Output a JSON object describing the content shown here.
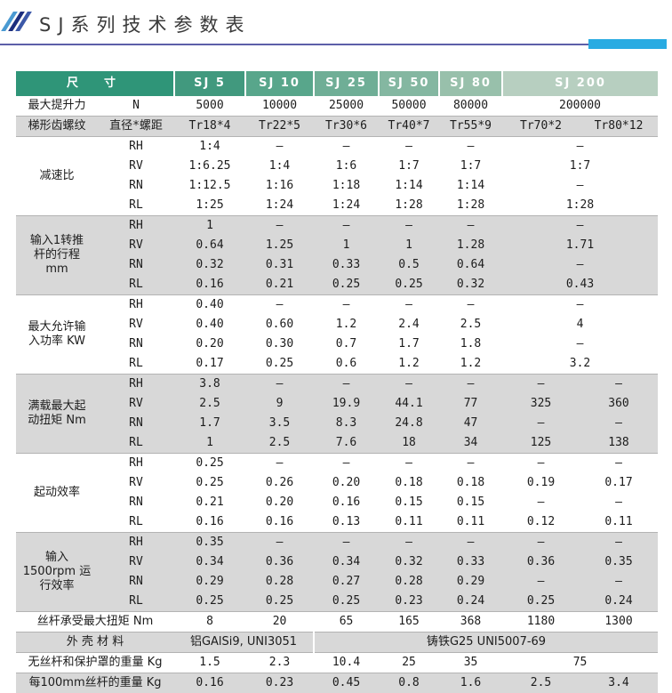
{
  "page": {
    "title": "SJ系列技术参数表",
    "accent": {
      "underline": "#5c5fa8",
      "corner_tab": "#29abe2",
      "slash_light": "#4a9ad2",
      "slash_navy": "#1c2e7e",
      "slash_mid": "#3c58a8",
      "header_green_dark": "#2f9578",
      "header_green_light": "#b7cfc0",
      "row_gray": "#d8d8d8"
    }
  },
  "table": {
    "rows": [
      {
        "bg": "h",
        "cells": [
          {
            "t": "尺　寸",
            "cs": 2,
            "k": "head"
          },
          {
            "t": "SJ 5",
            "k": "head"
          },
          {
            "t": "SJ 10",
            "k": "head"
          },
          {
            "t": "SJ 25",
            "k": "head"
          },
          {
            "t": "SJ 50",
            "k": "head"
          },
          {
            "t": "SJ 80",
            "k": "head"
          },
          {
            "t": "SJ 200",
            "cs": 2,
            "k": "head"
          }
        ]
      },
      {
        "bg": "w",
        "cells": [
          {
            "t": "最大提升力",
            "k": "label",
            "al": "l"
          },
          {
            "t": "N",
            "k": "sub"
          },
          {
            "t": "5000"
          },
          {
            "t": "10000"
          },
          {
            "t": "25000"
          },
          {
            "t": "50000"
          },
          {
            "t": "80000"
          },
          {
            "t": "200000",
            "cs": 2
          }
        ]
      },
      {
        "bg": "g",
        "ln": true,
        "cells": [
          {
            "t": "梯形齿螺纹",
            "k": "label",
            "al": "l"
          },
          {
            "t": "直径*螺距",
            "k": "sub"
          },
          {
            "t": "Tr18*4"
          },
          {
            "t": "Tr22*5"
          },
          {
            "t": "Tr30*6"
          },
          {
            "t": "Tr40*7"
          },
          {
            "t": "Tr55*9"
          },
          {
            "t": "Tr70*2"
          },
          {
            "t": "Tr80*12"
          }
        ]
      },
      {
        "bg": "w",
        "ln": true,
        "cells": [
          {
            "t": "减速比",
            "k": "label",
            "rs": 4
          },
          {
            "t": "RH",
            "k": "sub"
          },
          {
            "t": "1:4"
          },
          {
            "t": "–"
          },
          {
            "t": "–"
          },
          {
            "t": "–"
          },
          {
            "t": "–"
          },
          {
            "t": "–",
            "cs": 2
          }
        ]
      },
      {
        "bg": "w",
        "cells": [
          {
            "t": "RV",
            "k": "sub"
          },
          {
            "t": "1:6.25"
          },
          {
            "t": "1:4"
          },
          {
            "t": "1:6"
          },
          {
            "t": "1:7"
          },
          {
            "t": "1:7"
          },
          {
            "t": "1:7",
            "cs": 2
          }
        ]
      },
      {
        "bg": "w",
        "cells": [
          {
            "t": "RN",
            "k": "sub"
          },
          {
            "t": "1:12.5"
          },
          {
            "t": "1:16"
          },
          {
            "t": "1:18"
          },
          {
            "t": "1:14"
          },
          {
            "t": "1:14"
          },
          {
            "t": "–",
            "cs": 2
          }
        ]
      },
      {
        "bg": "w",
        "cells": [
          {
            "t": "RL",
            "k": "sub"
          },
          {
            "t": "1:25"
          },
          {
            "t": "1:24"
          },
          {
            "t": "1:24"
          },
          {
            "t": "1:28"
          },
          {
            "t": "1:28"
          },
          {
            "t": "1:28",
            "cs": 2
          }
        ]
      },
      {
        "bg": "g",
        "ln": true,
        "cells": [
          {
            "t": "输入1转推\n杆的行程\nmm",
            "k": "label",
            "rs": 4
          },
          {
            "t": "RH",
            "k": "sub"
          },
          {
            "t": "1"
          },
          {
            "t": "–"
          },
          {
            "t": "–"
          },
          {
            "t": "–"
          },
          {
            "t": "–"
          },
          {
            "t": "–",
            "cs": 2
          }
        ]
      },
      {
        "bg": "g",
        "cells": [
          {
            "t": "RV",
            "k": "sub"
          },
          {
            "t": "0.64"
          },
          {
            "t": "1.25"
          },
          {
            "t": "1"
          },
          {
            "t": "1"
          },
          {
            "t": "1.28"
          },
          {
            "t": "1.71",
            "cs": 2
          }
        ]
      },
      {
        "bg": "g",
        "cells": [
          {
            "t": "RN",
            "k": "sub"
          },
          {
            "t": "0.32"
          },
          {
            "t": "0.31"
          },
          {
            "t": "0.33"
          },
          {
            "t": "0.5"
          },
          {
            "t": "0.64"
          },
          {
            "t": "–",
            "cs": 2
          }
        ]
      },
      {
        "bg": "g",
        "cells": [
          {
            "t": "RL",
            "k": "sub"
          },
          {
            "t": "0.16"
          },
          {
            "t": "0.21"
          },
          {
            "t": "0.25"
          },
          {
            "t": "0.25"
          },
          {
            "t": "0.32"
          },
          {
            "t": "0.43",
            "cs": 2
          }
        ]
      },
      {
        "bg": "w",
        "ln": true,
        "cells": [
          {
            "t": "最大允许输\n入功率 KW",
            "k": "label",
            "rs": 4
          },
          {
            "t": "RH",
            "k": "sub"
          },
          {
            "t": "0.40"
          },
          {
            "t": "–"
          },
          {
            "t": "–"
          },
          {
            "t": "–"
          },
          {
            "t": "–"
          },
          {
            "t": "–",
            "cs": 2
          }
        ]
      },
      {
        "bg": "w",
        "cells": [
          {
            "t": "RV",
            "k": "sub"
          },
          {
            "t": "0.40"
          },
          {
            "t": "0.60"
          },
          {
            "t": "1.2"
          },
          {
            "t": "2.4"
          },
          {
            "t": "2.5"
          },
          {
            "t": "4",
            "cs": 2
          }
        ]
      },
      {
        "bg": "w",
        "cells": [
          {
            "t": "RN",
            "k": "sub"
          },
          {
            "t": "0.20"
          },
          {
            "t": "0.30"
          },
          {
            "t": "0.7"
          },
          {
            "t": "1.7"
          },
          {
            "t": "1.8"
          },
          {
            "t": "–",
            "cs": 2
          }
        ]
      },
      {
        "bg": "w",
        "cells": [
          {
            "t": "RL",
            "k": "sub"
          },
          {
            "t": "0.17"
          },
          {
            "t": "0.25"
          },
          {
            "t": "0.6"
          },
          {
            "t": "1.2"
          },
          {
            "t": "1.2"
          },
          {
            "t": "3.2",
            "cs": 2
          }
        ]
      },
      {
        "bg": "g",
        "ln": true,
        "cells": [
          {
            "t": "满载最大起\n动扭矩 Nm",
            "k": "label",
            "rs": 4
          },
          {
            "t": "RH",
            "k": "sub"
          },
          {
            "t": "3.8"
          },
          {
            "t": "–"
          },
          {
            "t": "–"
          },
          {
            "t": "–"
          },
          {
            "t": "–"
          },
          {
            "t": "–"
          },
          {
            "t": "–"
          }
        ]
      },
      {
        "bg": "g",
        "cells": [
          {
            "t": "RV",
            "k": "sub"
          },
          {
            "t": "2.5"
          },
          {
            "t": "9"
          },
          {
            "t": "19.9"
          },
          {
            "t": "44.1"
          },
          {
            "t": "77"
          },
          {
            "t": "325"
          },
          {
            "t": "360"
          }
        ]
      },
      {
        "bg": "g",
        "cells": [
          {
            "t": "RN",
            "k": "sub"
          },
          {
            "t": "1.7"
          },
          {
            "t": "3.5"
          },
          {
            "t": "8.3"
          },
          {
            "t": "24.8"
          },
          {
            "t": "47"
          },
          {
            "t": "–"
          },
          {
            "t": "–"
          }
        ]
      },
      {
        "bg": "g",
        "cells": [
          {
            "t": "RL",
            "k": "sub"
          },
          {
            "t": "1"
          },
          {
            "t": "2.5"
          },
          {
            "t": "7.6"
          },
          {
            "t": "18"
          },
          {
            "t": "34"
          },
          {
            "t": "125"
          },
          {
            "t": "138"
          }
        ]
      },
      {
        "bg": "w",
        "ln": true,
        "cells": [
          {
            "t": "起动效率",
            "k": "label",
            "rs": 4
          },
          {
            "t": "RH",
            "k": "sub"
          },
          {
            "t": "0.25"
          },
          {
            "t": "–"
          },
          {
            "t": "–"
          },
          {
            "t": "–"
          },
          {
            "t": "–"
          },
          {
            "t": "–"
          },
          {
            "t": "–"
          }
        ]
      },
      {
        "bg": "w",
        "cells": [
          {
            "t": "RV",
            "k": "sub"
          },
          {
            "t": "0.25"
          },
          {
            "t": "0.26"
          },
          {
            "t": "0.20"
          },
          {
            "t": "0.18"
          },
          {
            "t": "0.18"
          },
          {
            "t": "0.19"
          },
          {
            "t": "0.17"
          }
        ]
      },
      {
        "bg": "w",
        "cells": [
          {
            "t": "RN",
            "k": "sub"
          },
          {
            "t": "0.21"
          },
          {
            "t": "0.20"
          },
          {
            "t": "0.16"
          },
          {
            "t": "0.15"
          },
          {
            "t": "0.15"
          },
          {
            "t": "–"
          },
          {
            "t": "–"
          }
        ]
      },
      {
        "bg": "w",
        "cells": [
          {
            "t": "RL",
            "k": "sub"
          },
          {
            "t": "0.16"
          },
          {
            "t": "0.16"
          },
          {
            "t": "0.13"
          },
          {
            "t": "0.11"
          },
          {
            "t": "0.11"
          },
          {
            "t": "0.12"
          },
          {
            "t": "0.11"
          }
        ]
      },
      {
        "bg": "g",
        "ln": true,
        "cells": [
          {
            "t": "输入\n1500rpm 运\n行效率",
            "k": "label",
            "rs": 4
          },
          {
            "t": "RH",
            "k": "sub"
          },
          {
            "t": "0.35"
          },
          {
            "t": "–"
          },
          {
            "t": "–"
          },
          {
            "t": "–"
          },
          {
            "t": "–"
          },
          {
            "t": "–"
          },
          {
            "t": "–"
          }
        ]
      },
      {
        "bg": "g",
        "cells": [
          {
            "t": "RV",
            "k": "sub"
          },
          {
            "t": "0.34"
          },
          {
            "t": "0.36"
          },
          {
            "t": "0.34"
          },
          {
            "t": "0.32"
          },
          {
            "t": "0.33"
          },
          {
            "t": "0.36"
          },
          {
            "t": "0.35"
          }
        ]
      },
      {
        "bg": "g",
        "cells": [
          {
            "t": "RN",
            "k": "sub"
          },
          {
            "t": "0.29"
          },
          {
            "t": "0.28"
          },
          {
            "t": "0.27"
          },
          {
            "t": "0.28"
          },
          {
            "t": "0.29"
          },
          {
            "t": "–"
          },
          {
            "t": "–"
          }
        ]
      },
      {
        "bg": "g",
        "cells": [
          {
            "t": "RL",
            "k": "sub"
          },
          {
            "t": "0.25"
          },
          {
            "t": "0.25"
          },
          {
            "t": "0.25"
          },
          {
            "t": "0.23"
          },
          {
            "t": "0.24"
          },
          {
            "t": "0.25"
          },
          {
            "t": "0.24"
          }
        ]
      },
      {
        "bg": "w",
        "ln": true,
        "cells": [
          {
            "t": "丝杆承受最大扭矩 Nm",
            "cs": 2,
            "k": "label",
            "al": "l"
          },
          {
            "t": "8"
          },
          {
            "t": "20"
          },
          {
            "t": "65"
          },
          {
            "t": "165"
          },
          {
            "t": "368"
          },
          {
            "t": "1180"
          },
          {
            "t": "1300"
          }
        ]
      },
      {
        "bg": "g",
        "ln": true,
        "cells": [
          {
            "t": "外 壳 材 料",
            "cs": 2,
            "k": "label",
            "al": "l"
          },
          {
            "t": "铝GAlSi9, UNI3051",
            "cs": 2,
            "k": "matl"
          },
          {
            "t": "铸铁G25 UNI5007-69",
            "cs": 5,
            "k": "matl",
            "sep": true
          }
        ]
      },
      {
        "bg": "w",
        "ln": true,
        "cells": [
          {
            "t": "无丝杆和保护罩的重量 Kg",
            "cs": 2,
            "k": "label",
            "al": "l"
          },
          {
            "t": "1.5"
          },
          {
            "t": "2.3"
          },
          {
            "t": "10.4"
          },
          {
            "t": "25"
          },
          {
            "t": "35"
          },
          {
            "t": "75",
            "cs": 2
          }
        ]
      },
      {
        "bg": "g",
        "ln": true,
        "cells": [
          {
            "t": "每100mm丝杆的重量 Kg",
            "cs": 2,
            "k": "label",
            "al": "l"
          },
          {
            "t": "0.16"
          },
          {
            "t": "0.23"
          },
          {
            "t": "0.45"
          },
          {
            "t": "0.8"
          },
          {
            "t": "1.6"
          },
          {
            "t": "2.5"
          },
          {
            "t": "3.4"
          }
        ]
      }
    ]
  }
}
